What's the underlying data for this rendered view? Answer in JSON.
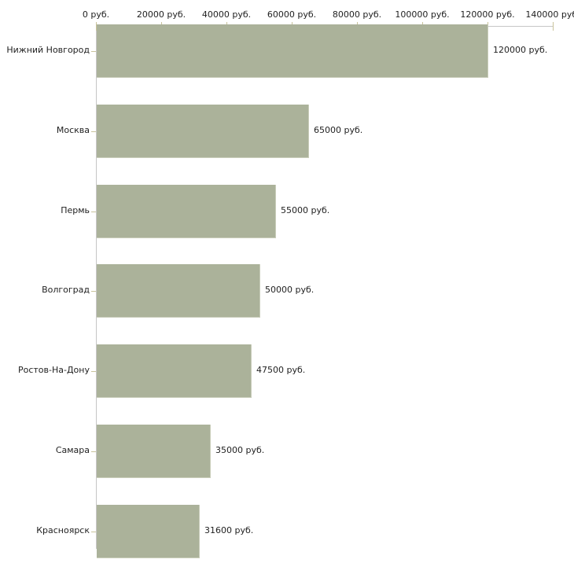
{
  "chart_data": {
    "type": "bar",
    "orientation": "horizontal",
    "categories": [
      "Нижний Новгород",
      "Москва",
      "Пермь",
      "Волгоград",
      "Ростов-На-Дону",
      "Самара",
      "Красноярск"
    ],
    "values": [
      120000,
      65000,
      55000,
      50000,
      47500,
      35000,
      31600
    ],
    "value_labels": [
      "120000 руб.",
      "65000 руб.",
      "55000 руб.",
      "50000 руб.",
      "47500 руб.",
      "35000 руб.",
      "31600 руб."
    ],
    "x_axis": {
      "position": "top",
      "max": 140000,
      "ticks": [
        0,
        20000,
        40000,
        60000,
        80000,
        100000,
        120000,
        140000
      ],
      "tick_labels": [
        "0 руб.",
        "20000 руб.",
        "40000 руб.",
        "60000 руб.",
        "80000 руб.",
        "100000 руб.",
        "120000 руб.",
        "140000 руб."
      ],
      "unit": "руб."
    },
    "ylabel": "",
    "xlabel": "",
    "grid": false,
    "legend": false,
    "colors": {
      "bar": "#abb29a",
      "bar_edge": "#c9cdba",
      "axis_line": "#c6c6c6",
      "tick_mark": "#c9c39b",
      "text": "#1f1f1f",
      "background": "#ffffff"
    }
  }
}
